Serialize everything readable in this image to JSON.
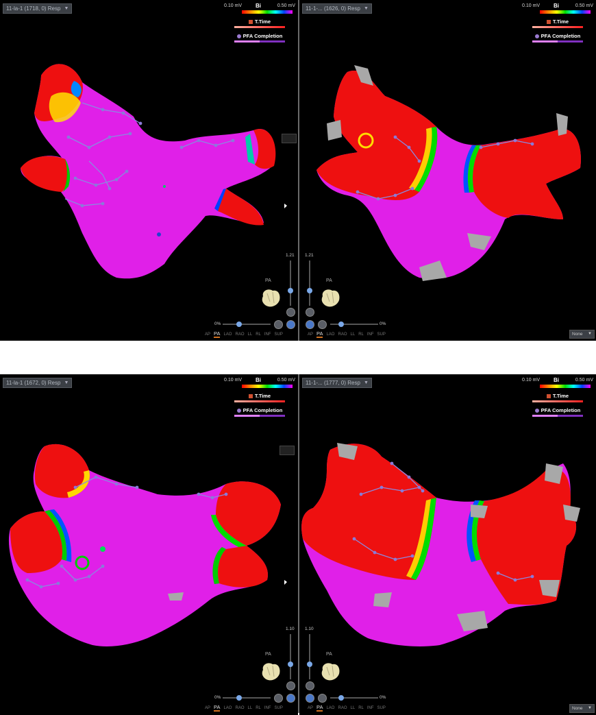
{
  "panels": [
    {
      "id": "tl",
      "selector": "11-la-1 (1718, 0) Resp",
      "zoom": "1.21"
    },
    {
      "id": "tr",
      "selector": "11-1-... (1626, 0) Resp",
      "zoom": "1.21"
    },
    {
      "id": "bl",
      "selector": "11-la-1 (1672, 0) Resp",
      "zoom": "1.10"
    },
    {
      "id": "br",
      "selector": "11-1-... (1777, 0) Resp",
      "zoom": "1.10"
    }
  ],
  "legend": {
    "low": "0.10 mV",
    "high": "0.50 mV",
    "mode": "Bi",
    "ttime": "T.Time",
    "pfa": "PFA Completion"
  },
  "controls": {
    "orientation": "PA",
    "opacity_left": "0%",
    "opacity_right": "0%",
    "views": [
      "AP",
      "PA",
      "LAO",
      "RAO",
      "LL",
      "RL",
      "INF",
      "SUP"
    ],
    "active_view": "PA",
    "dropdown": "None"
  },
  "colors": {
    "tissue": "#e020e8",
    "scar": "#ee1010",
    "gray": "#a8a8a8"
  }
}
